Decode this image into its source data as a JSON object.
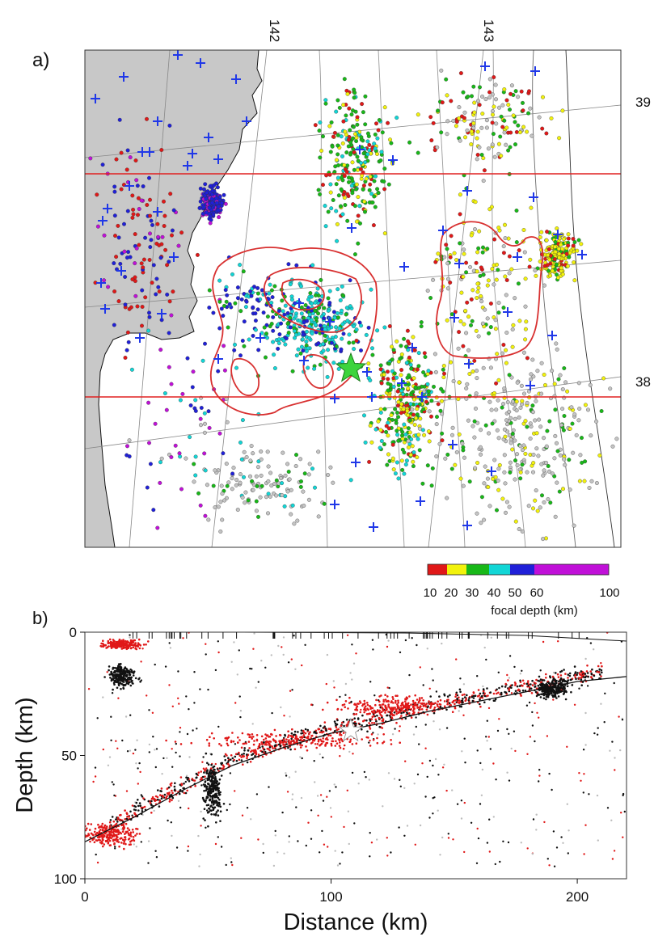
{
  "panel_a": {
    "label": "a)",
    "lon_ticks": [
      "142",
      "143"
    ],
    "lat_ticks": [
      "39",
      "38"
    ],
    "colorbar": {
      "tick_labels": [
        "10",
        "20",
        "30",
        "40",
        "50",
        "60",
        "100"
      ],
      "title": "focal depth (km)",
      "colors": [
        "#e01818",
        "#f2f20c",
        "#18b818",
        "#12d6d6",
        "#2020d8",
        "#c010d8"
      ]
    },
    "colors": {
      "land": "#c8c8c8",
      "ocean": "#ffffff",
      "section_line": "#e02020",
      "slip_contour": "#d83030",
      "plus_marker": "#2038e8",
      "mainshock": "#3cd43c",
      "background_seismicity": "#c4c4c4"
    }
  },
  "panel_b": {
    "label": "b)",
    "colors": {
      "recent": "#e01818",
      "older": "#111111",
      "distant": "#bdbdbd",
      "mainshock": "#ffffff"
    }
  },
  "chart_data": [
    {
      "type": "scatter",
      "title": "",
      "xlabel": "",
      "ylabel": "",
      "x_ticks": [
        "142",
        "143"
      ],
      "y_ticks": [
        "39",
        "38"
      ],
      "grid": true,
      "colorbar": {
        "label": "focal depth (km)",
        "ticks": [
          10,
          20,
          30,
          40,
          50,
          60,
          100
        ]
      },
      "series": [
        {
          "name": "",
          "note_color_by": "focal depth"
        }
      ]
    },
    {
      "type": "scatter",
      "title": "",
      "xlabel": "Distance (km)",
      "ylabel": "Depth (km)",
      "x_ticks": [
        "0",
        "100",
        "200"
      ],
      "y_ticks": [
        "0",
        "50",
        "100"
      ],
      "xlim": [
        0,
        220
      ],
      "ylim": [
        100,
        0
      ],
      "interface_curve": {
        "x": [
          0,
          20,
          40,
          60,
          80,
          100,
          120,
          140,
          160,
          180,
          200,
          220
        ],
        "y": [
          85,
          75,
          64,
          54,
          47,
          41,
          37,
          32,
          28,
          24,
          20,
          18
        ]
      },
      "clusters": [
        {
          "series": "red",
          "x_center": 85,
          "depth_center": 44,
          "spread": [
            40,
            4
          ]
        },
        {
          "series": "red",
          "x_center": 125,
          "depth_center": 30,
          "spread": [
            25,
            4
          ]
        },
        {
          "series": "black",
          "x_center": 52,
          "depth_center": 65,
          "spread": [
            4,
            12
          ]
        },
        {
          "series": "black",
          "x_center": 190,
          "depth_center": 23,
          "spread": [
            8,
            4
          ]
        },
        {
          "series": "black",
          "x_center": 15,
          "depth_center": 18,
          "spread": [
            6,
            5
          ]
        },
        {
          "series": "red",
          "x_center": 10,
          "depth_center": 82,
          "spread": [
            12,
            5
          ]
        },
        {
          "series": "red",
          "x_center": 15,
          "depth_center": 5,
          "spread": [
            8,
            2
          ]
        }
      ],
      "mainshock": {
        "x": 108,
        "depth": 40
      }
    }
  ]
}
